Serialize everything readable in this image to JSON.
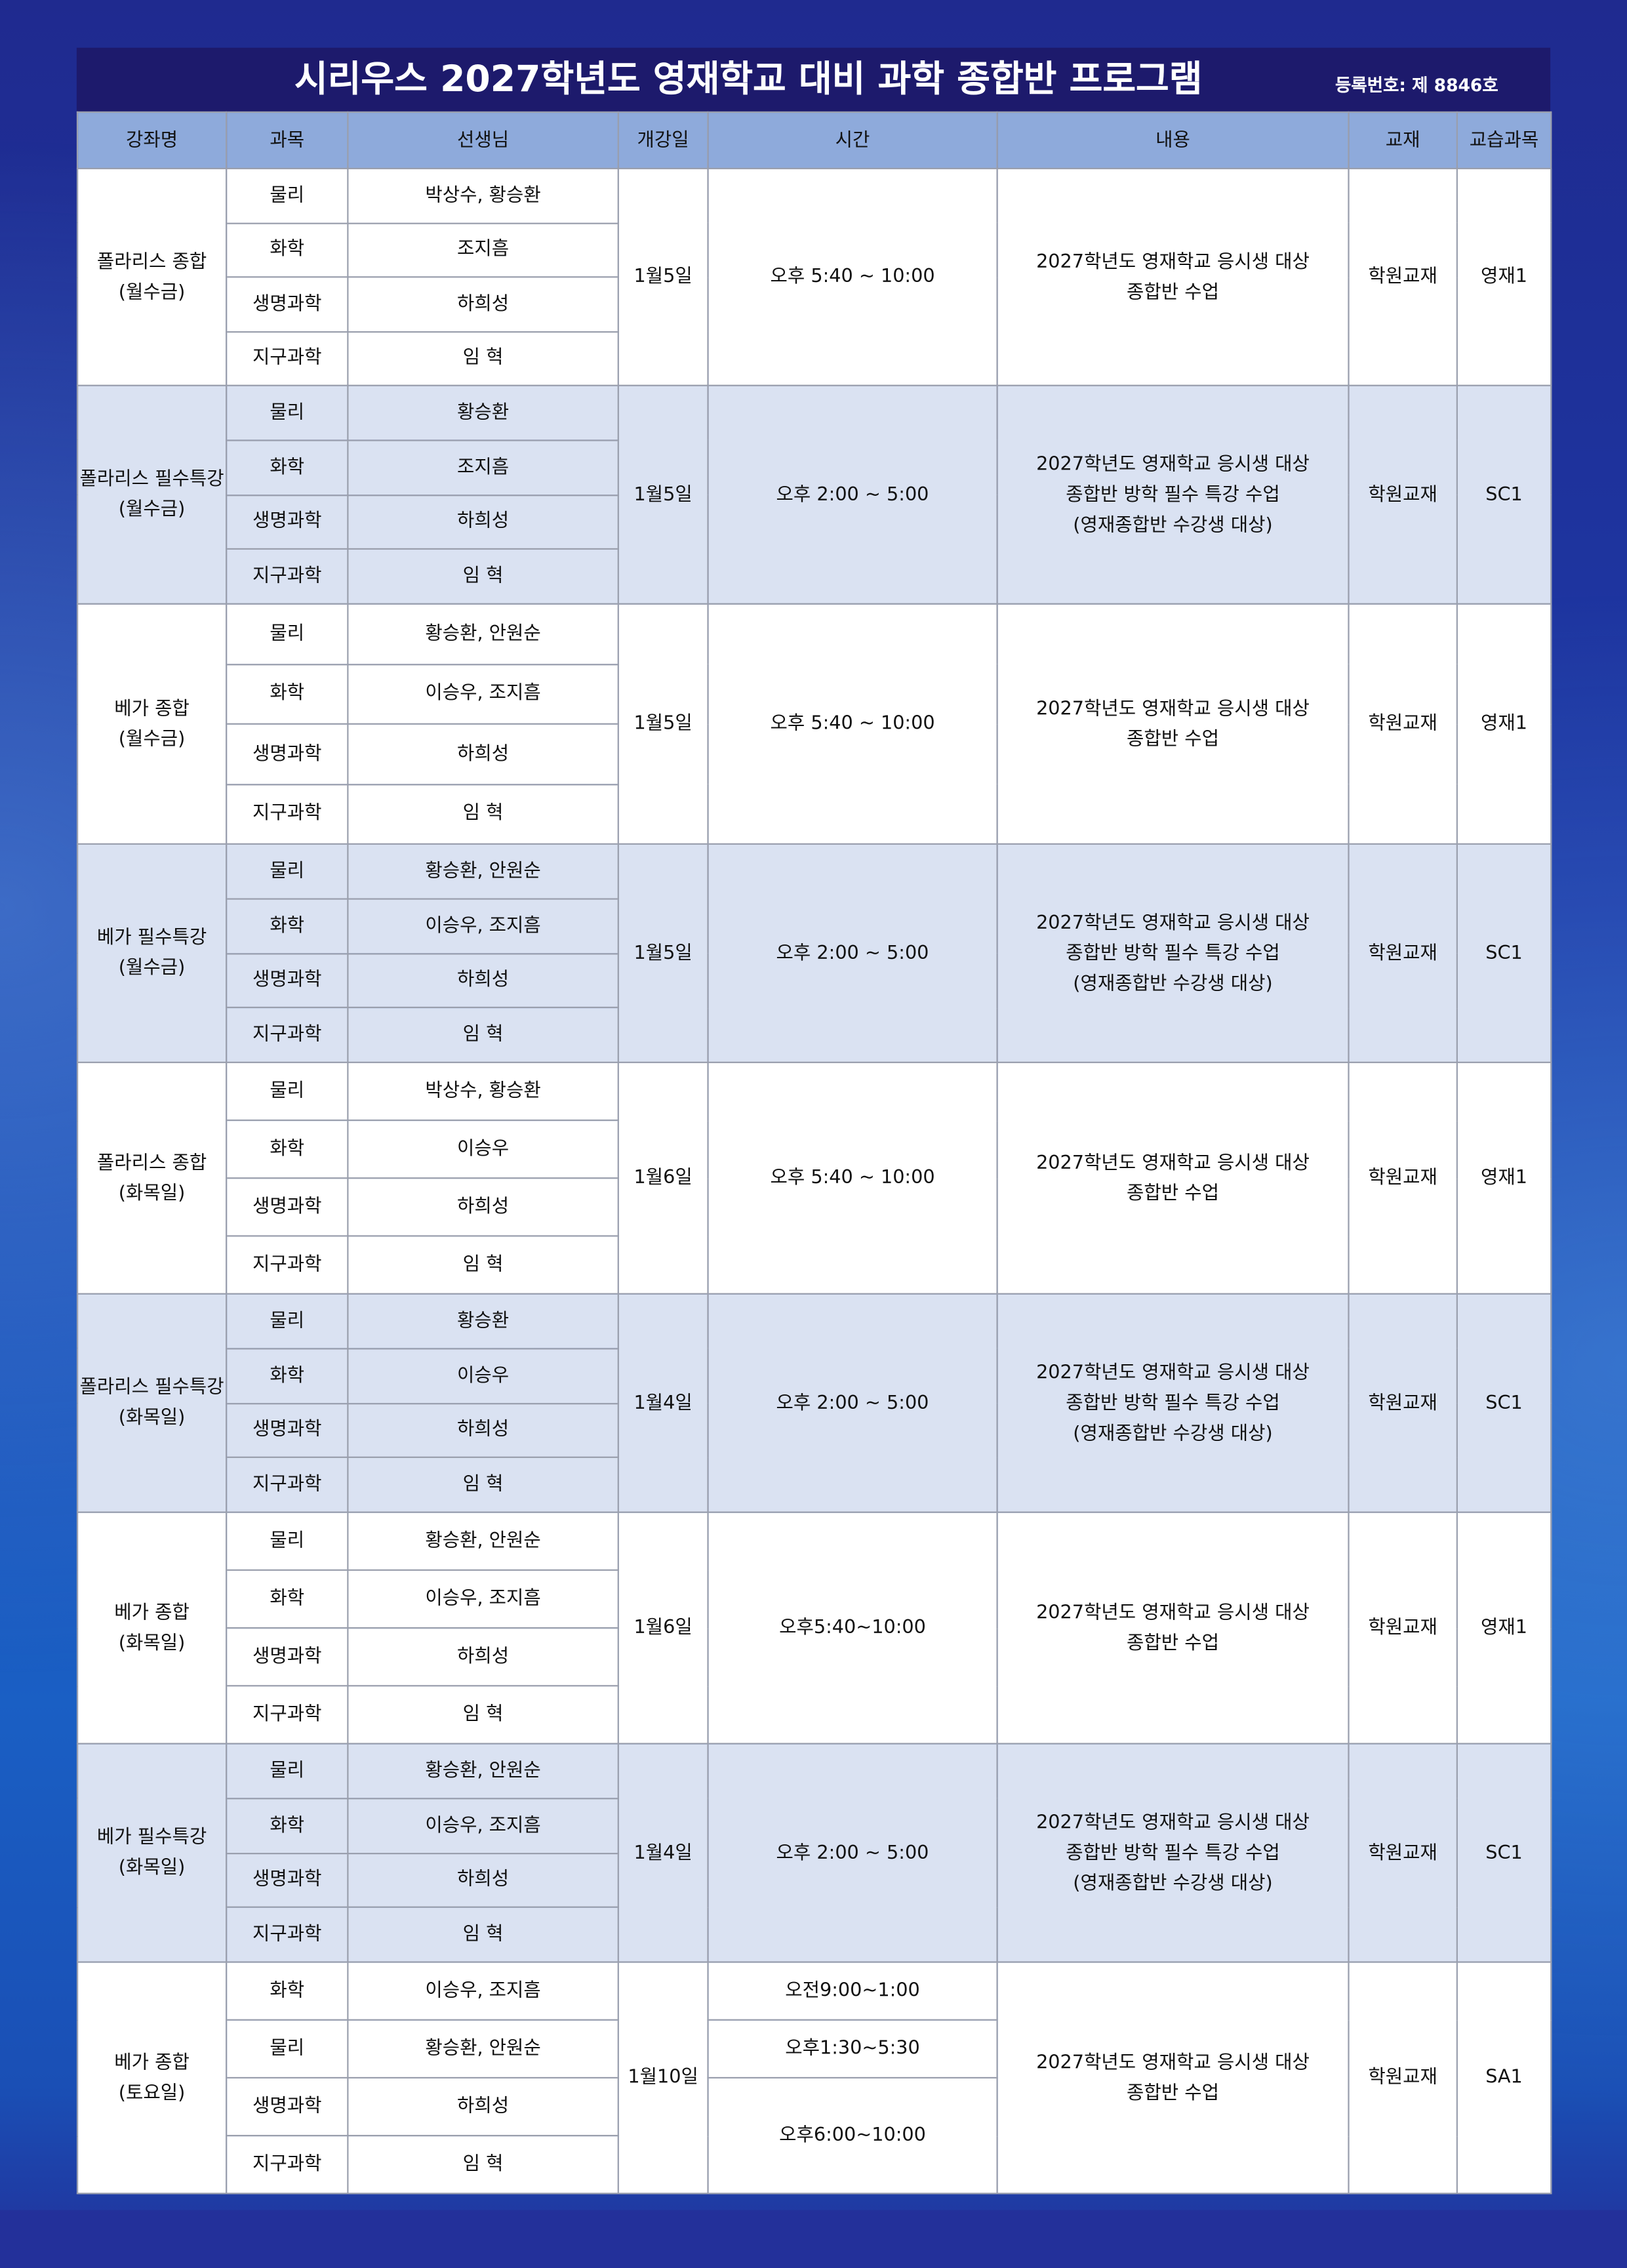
{
  "title": "시리우스 2027학년도 영재학교 대비 과학 종합반 프로그램",
  "registration": "등록번호: 제 8846호",
  "headers": [
    "강좌명",
    "과목",
    "선생님",
    "개강일",
    "시간",
    "내용",
    "교재",
    "교습과목"
  ],
  "colors": {
    "title_bg": "#1d1a6c",
    "header_bg": "#8eaadb",
    "shade_row": "#dae2f2"
  },
  "groups": [
    {
      "name": [
        "폴라리스 종합",
        "(월수금)"
      ],
      "rows": [
        [
          "물리",
          "박상수, 황승환"
        ],
        [
          "화학",
          "조지흠"
        ],
        [
          "생명과학",
          "하희성"
        ],
        [
          "지구과학",
          "임  혁"
        ]
      ],
      "date": "1월5일",
      "time": [
        "오후 5:40 ~ 10:00"
      ],
      "content": [
        "2027학년도 영재학교 응시생 대상",
        "종합반 수업"
      ],
      "book": "학원교재",
      "course": "영재1"
    },
    {
      "name": [
        "폴라리스 필수특강",
        "(월수금)"
      ],
      "rows": [
        [
          "물리",
          "황승환"
        ],
        [
          "화학",
          "조지흠"
        ],
        [
          "생명과학",
          "하희성"
        ],
        [
          "지구과학",
          "임  혁"
        ]
      ],
      "date": "1월5일",
      "time": [
        "오후 2:00 ~ 5:00"
      ],
      "content": [
        "2027학년도 영재학교 응시생 대상",
        "종합반 방학 필수 특강 수업",
        "(영재종합반 수강생 대상)"
      ],
      "book": "학원교재",
      "course": "SC1"
    },
    {
      "name": [
        "베가 종합",
        "(월수금)"
      ],
      "rows": [
        [
          "물리",
          "황승환, 안원순"
        ],
        [
          "화학",
          "이승우, 조지흠"
        ],
        [
          "생명과학",
          "하희성"
        ],
        [
          "지구과학",
          "임 혁"
        ]
      ],
      "date": "1월5일",
      "time": [
        "오후 5:40 ~ 10:00"
      ],
      "content": [
        "2027학년도 영재학교 응시생 대상",
        "종합반 수업"
      ],
      "book": "학원교재",
      "course": "영재1"
    },
    {
      "name": [
        "베가 필수특강",
        "(월수금)"
      ],
      "rows": [
        [
          "물리",
          "황승환, 안원순"
        ],
        [
          "화학",
          "이승우, 조지흠"
        ],
        [
          "생명과학",
          "하희성"
        ],
        [
          "지구과학",
          "임  혁"
        ]
      ],
      "date": "1월5일",
      "time": [
        "오후 2:00 ~ 5:00"
      ],
      "content": [
        "2027학년도 영재학교 응시생 대상",
        "종합반 방학 필수 특강 수업",
        "(영재종합반 수강생 대상)"
      ],
      "book": "학원교재",
      "course": "SC1"
    },
    {
      "name": [
        "폴라리스 종합",
        "(화목일)"
      ],
      "rows": [
        [
          "물리",
          "박상수, 황승환"
        ],
        [
          "화학",
          "이승우"
        ],
        [
          "생명과학",
          "하희성"
        ],
        [
          "지구과학",
          "임  혁"
        ]
      ],
      "date": "1월6일",
      "time": [
        "오후 5:40 ~ 10:00"
      ],
      "content": [
        "2027학년도 영재학교 응시생 대상",
        "종합반 수업"
      ],
      "book": "학원교재",
      "course": "영재1"
    },
    {
      "name": [
        "폴라리스 필수특강",
        "(화목일)"
      ],
      "rows": [
        [
          "물리",
          "황승환"
        ],
        [
          "화학",
          "이승우"
        ],
        [
          "생명과학",
          "하희성"
        ],
        [
          "지구과학",
          "임  혁"
        ]
      ],
      "date": "1월4일",
      "time": [
        "오후 2:00 ~ 5:00"
      ],
      "content": [
        "2027학년도 영재학교 응시생 대상",
        "종합반 방학 필수 특강 수업",
        "(영재종합반 수강생 대상)"
      ],
      "book": "학원교재",
      "course": "SC1"
    },
    {
      "name": [
        "베가 종합",
        "(화목일)"
      ],
      "rows": [
        [
          "물리",
          "황승환, 안원순"
        ],
        [
          "화학",
          "이승우, 조지흠"
        ],
        [
          "생명과학",
          "하희성"
        ],
        [
          "지구과학",
          "임 혁"
        ]
      ],
      "date": "1월6일",
      "time": [
        "오후5:40~10:00"
      ],
      "content": [
        "2027학년도 영재학교 응시생 대상",
        "종합반 수업"
      ],
      "book": "학원교재",
      "course": "영재1"
    },
    {
      "name": [
        "베가 필수특강",
        "(화목일)"
      ],
      "rows": [
        [
          "물리",
          "황승환, 안원순"
        ],
        [
          "화학",
          "이승우, 조지흠"
        ],
        [
          "생명과학",
          "하희성"
        ],
        [
          "지구과학",
          "임  혁"
        ]
      ],
      "date": "1월4일",
      "time": [
        "오후 2:00 ~ 5:00"
      ],
      "content": [
        "2027학년도 영재학교 응시생 대상",
        "종합반 방학 필수 특강 수업",
        "(영재종합반 수강생 대상)"
      ],
      "book": "학원교재",
      "course": "SC1"
    },
    {
      "name": [
        "베가 종합",
        "(토요일)"
      ],
      "rows": [
        [
          "화학",
          "이승우, 조지흠"
        ],
        [
          "물리",
          "황승환, 안원순"
        ],
        [
          "생명과학",
          "하희성"
        ],
        [
          "지구과학",
          "임  혁"
        ]
      ],
      "date": "1월10일",
      "time": [
        "오전9:00~1:00",
        "오후1:30~5:30",
        "오후6:00~10:00"
      ],
      "content": [
        "2027학년도 영재학교 응시생 대상",
        "종합반 수업"
      ],
      "book": "학원교재",
      "course": "SA1"
    }
  ]
}
